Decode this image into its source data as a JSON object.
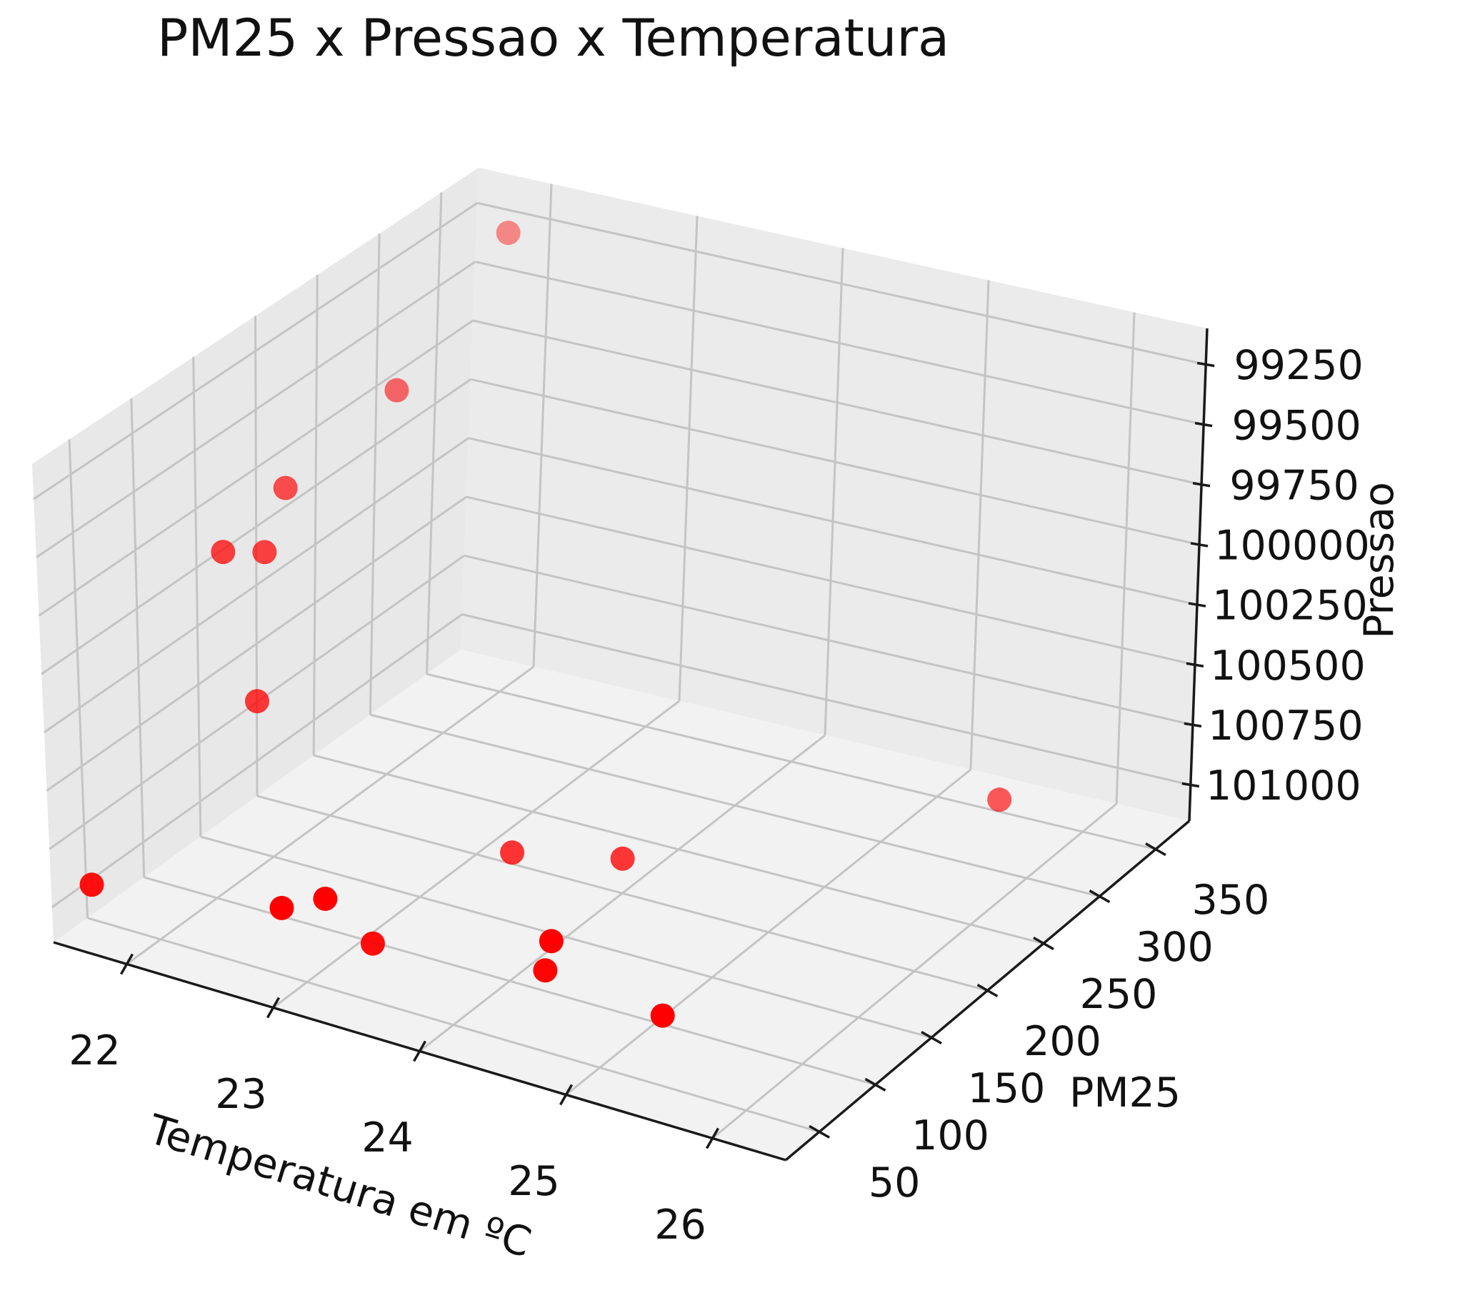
{
  "chart_data": {
    "type": "scatter",
    "projection": "3d",
    "title": "PM25 x Pressao x Temperatura",
    "xlabel": "Temperatura em ºC",
    "ylabel": "PM25",
    "zlabel": "Pressao",
    "x_ticks": [
      "22",
      "23",
      "24",
      "25",
      "26"
    ],
    "y_ticks": [
      "50",
      "100",
      "150",
      "200",
      "250",
      "300",
      "350"
    ],
    "z_ticks": [
      "99250",
      "99500",
      "99750",
      "100000",
      "100250",
      "100500",
      "100750",
      "101000"
    ],
    "xlim": [
      21.5,
      26.5
    ],
    "ylim": [
      20,
      380
    ],
    "zlim": [
      99100,
      101150
    ],
    "z_inverted": true,
    "grid": true,
    "marker_color": "#ff0000",
    "series": [
      {
        "points": [
          {
            "x": 21.8,
            "y": 370,
            "z": 99300
          },
          {
            "x": 21.8,
            "y": 280,
            "z": 99650
          },
          {
            "x": 21.7,
            "y": 200,
            "z": 99800
          },
          {
            "x": 21.6,
            "y": 160,
            "z": 99950
          },
          {
            "x": 21.8,
            "y": 170,
            "z": 99950
          },
          {
            "x": 21.9,
            "y": 150,
            "z": 100500
          },
          {
            "x": 21.7,
            "y": 30,
            "z": 100900
          },
          {
            "x": 23.0,
            "y": 30,
            "z": 100750
          },
          {
            "x": 23.3,
            "y": 30,
            "z": 100650
          },
          {
            "x": 23.3,
            "y": 70,
            "z": 101000
          },
          {
            "x": 24.6,
            "y": 60,
            "z": 100700
          },
          {
            "x": 24.4,
            "y": 80,
            "z": 100950
          },
          {
            "x": 23.4,
            "y": 180,
            "z": 101000
          },
          {
            "x": 24.0,
            "y": 200,
            "z": 101000
          },
          {
            "x": 25.2,
            "y": 80,
            "z": 101000
          },
          {
            "x": 25.5,
            "y": 340,
            "z": 101050
          }
        ]
      }
    ]
  }
}
